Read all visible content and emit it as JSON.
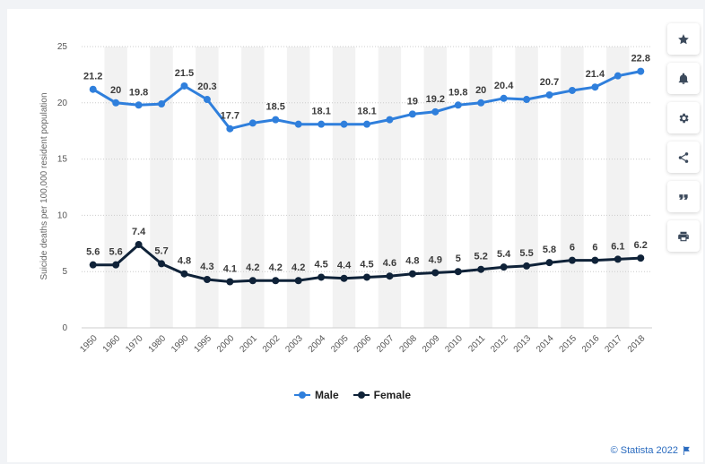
{
  "toolbar": {
    "icons": [
      "star-icon",
      "bell-icon",
      "gear-icon",
      "share-icon",
      "quote-icon",
      "print-icon"
    ]
  },
  "credit": {
    "text": "© Statista 2022"
  },
  "colors": {
    "male": "#2f7fdc",
    "female": "#0f2238",
    "band": "#f2f2f2",
    "grid": "#cccccc"
  },
  "chart_data": {
    "type": "line",
    "title": "",
    "xlabel": "",
    "ylabel": "Suicide deaths per 100,000 resident population",
    "ylim": [
      0,
      25
    ],
    "yticks": [
      "0",
      "5",
      "10",
      "15",
      "20",
      "25"
    ],
    "categories": [
      "1950",
      "1960",
      "1970",
      "1980",
      "1990",
      "1995",
      "2000",
      "2001",
      "2002",
      "2003",
      "2004",
      "2005",
      "2006",
      "2007",
      "2008",
      "2009",
      "2010",
      "2011",
      "2012",
      "2013",
      "2014",
      "2015",
      "2016",
      "2017",
      "2018"
    ],
    "series": [
      {
        "name": "Male",
        "values": [
          21.2,
          20,
          19.8,
          19.9,
          21.5,
          20.3,
          17.7,
          18.2,
          18.5,
          18.1,
          18.1,
          18.1,
          18.1,
          18.5,
          19,
          19.2,
          19.8,
          20,
          20.4,
          20.3,
          20.7,
          21.1,
          21.4,
          22.4,
          22.8
        ],
        "labels": [
          "21.2",
          "20",
          "19.8",
          "",
          "21.5",
          "20.3",
          "17.7",
          "",
          "18.5",
          "",
          "18.1",
          "",
          "18.1",
          "",
          "19",
          "19.2",
          "19.8",
          "20",
          "20.4",
          "",
          "20.7",
          "",
          "21.4",
          "",
          "22.8"
        ]
      },
      {
        "name": "Female",
        "values": [
          5.6,
          5.6,
          7.4,
          5.7,
          4.8,
          4.3,
          4.1,
          4.2,
          4.2,
          4.2,
          4.5,
          4.4,
          4.5,
          4.6,
          4.8,
          4.9,
          5,
          5.2,
          5.4,
          5.5,
          5.8,
          6,
          6,
          6.1,
          6.2
        ],
        "labels": [
          "5.6",
          "5.6",
          "7.4",
          "5.7",
          "4.8",
          "4.3",
          "4.1",
          "4.2",
          "4.2",
          "4.2",
          "4.5",
          "4.4",
          "4.5",
          "4.6",
          "4.8",
          "4.9",
          "5",
          "5.2",
          "5.4",
          "5.5",
          "5.8",
          "6",
          "6",
          "6.1",
          "6.2"
        ]
      }
    ]
  }
}
